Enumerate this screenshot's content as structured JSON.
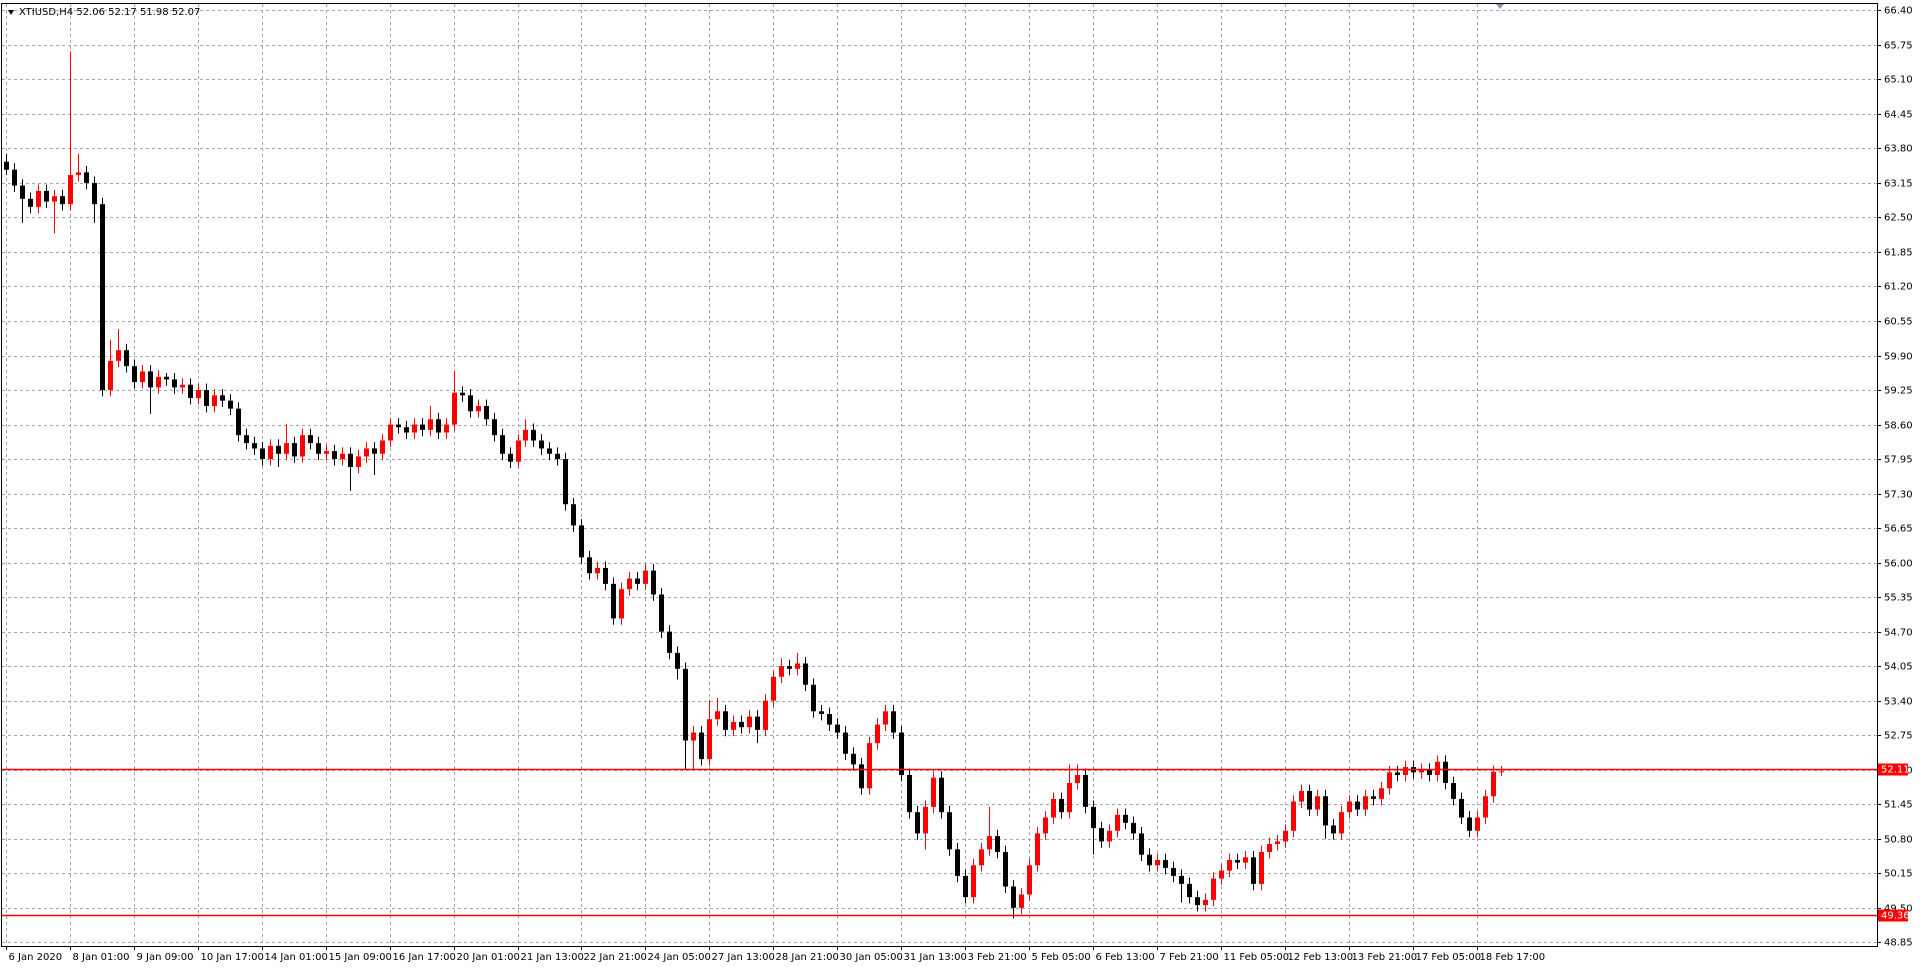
{
  "chart_data": {
    "type": "candlestick",
    "title": "XTIUSD,H4  52.06 52.17 51.98 52.07",
    "up_color": "#ff0000",
    "down_color": "#000000",
    "hline_color": "#ff0000",
    "grid": true,
    "ylim": [
      48.78,
      66.52
    ],
    "yticks": [
      {
        "value": 66.4,
        "label": "66.40"
      },
      65.75,
      {
        "value": 65.1,
        "label": "65.10"
      },
      64.45,
      {
        "value": 63.8,
        "label": "63.80"
      },
      63.15,
      {
        "value": 62.5,
        "label": "62.50"
      },
      61.85,
      {
        "value": 61.2,
        "label": "61.20"
      },
      60.55,
      {
        "value": 59.9,
        "label": "59.90"
      },
      59.25,
      {
        "value": 58.6,
        "label": "58.60"
      },
      57.95,
      {
        "value": 57.3,
        "label": "57.30"
      },
      56.65,
      {
        "value": 56,
        "label": "56.00"
      },
      55.35,
      {
        "value": 54.7,
        "label": "54.70"
      },
      54.05,
      {
        "value": 53.4,
        "label": "53.40"
      },
      52.75,
      {
        "value": 52.1,
        "label": "52.10"
      },
      51.45,
      {
        "value": 50.8,
        "label": "50.80"
      },
      50.15,
      {
        "value": 49.5,
        "label": "49.50"
      },
      48.85
    ],
    "xlim": [
      -0.5,
      234.1
    ],
    "xticks": [
      {
        "value": 0,
        "label": "6 Jan 2020"
      },
      {
        "value": 8,
        "label": "8 Jan 01:00"
      },
      {
        "value": 16,
        "label": "9 Jan 09:00"
      },
      {
        "value": 24,
        "label": "10 Jan 17:00"
      },
      {
        "value": 32,
        "label": "14 Jan 01:00"
      },
      {
        "value": 40,
        "label": "15 Jan 09:00"
      },
      {
        "value": 48,
        "label": "16 Jan 17:00"
      },
      {
        "value": 56,
        "label": "20 Jan 01:00"
      },
      {
        "value": 64,
        "label": "21 Jan 13:00"
      },
      {
        "value": 72,
        "label": "22 Jan 21:00"
      },
      {
        "value": 80,
        "label": "24 Jan 05:00"
      },
      {
        "value": 88,
        "label": "27 Jan 13:00"
      },
      {
        "value": 96,
        "label": "28 Jan 21:00"
      },
      {
        "value": 104,
        "label": "30 Jan 05:00"
      },
      {
        "value": 112,
        "label": "31 Jan 13:00"
      },
      {
        "value": 120,
        "label": "3 Feb 21:00"
      },
      {
        "value": 128,
        "label": "5 Feb 05:00"
      },
      {
        "value": 136,
        "label": "6 Feb 13:00"
      },
      {
        "value": 144,
        "label": "7 Feb 21:00"
      },
      {
        "value": 152,
        "label": "11 Feb 05:00"
      },
      {
        "value": 160,
        "label": "12 Feb 13:00"
      },
      {
        "value": 168,
        "label": "13 Feb 21:00"
      },
      {
        "value": 176,
        "label": "17 Feb 05:00"
      },
      {
        "value": 184,
        "label": "18 Feb 17:00"
      }
    ],
    "hlines": [
      52.11,
      49.36
    ],
    "candles": [
      [
        63.55,
        63.7,
        63.3,
        63.4
      ],
      [
        63.4,
        63.52,
        62.98,
        63.1
      ],
      [
        63.1,
        63.22,
        62.4,
        62.85
      ],
      [
        62.85,
        62.97,
        62.58,
        62.7
      ],
      [
        62.7,
        63.12,
        62.58,
        63.0
      ],
      [
        63.0,
        63.12,
        62.68,
        62.8
      ],
      [
        62.8,
        63.02,
        62.2,
        62.9
      ],
      [
        62.9,
        63.02,
        62.63,
        62.75
      ],
      [
        62.75,
        65.62,
        62.63,
        63.3
      ],
      [
        63.3,
        63.7,
        63.18,
        63.35
      ],
      [
        63.35,
        63.47,
        63.03,
        63.15
      ],
      [
        63.15,
        63.27,
        62.4,
        62.75
      ],
      [
        62.75,
        62.87,
        59.13,
        59.25
      ],
      [
        59.25,
        60.2,
        59.13,
        59.8
      ],
      [
        59.8,
        60.4,
        59.68,
        60.0
      ],
      [
        60.0,
        60.12,
        59.58,
        59.7
      ],
      [
        59.7,
        59.82,
        59.28,
        59.4
      ],
      [
        59.4,
        59.72,
        59.28,
        59.6
      ],
      [
        59.6,
        59.72,
        58.8,
        59.3
      ],
      [
        59.3,
        59.62,
        59.18,
        59.5
      ],
      [
        59.5,
        59.57,
        59.33,
        59.45
      ],
      [
        59.45,
        59.57,
        59.18,
        59.3
      ],
      [
        59.3,
        59.47,
        59.18,
        59.35
      ],
      [
        59.35,
        59.47,
        58.98,
        59.1
      ],
      [
        59.1,
        59.37,
        58.98,
        59.25
      ],
      [
        59.25,
        59.37,
        58.83,
        58.95
      ],
      [
        58.95,
        59.27,
        58.83,
        59.15
      ],
      [
        59.15,
        59.27,
        58.93,
        59.05
      ],
      [
        59.05,
        59.17,
        58.78,
        58.9
      ],
      [
        58.9,
        59.02,
        58.28,
        58.4
      ],
      [
        58.4,
        58.52,
        58.13,
        58.25
      ],
      [
        58.25,
        58.37,
        58.03,
        58.15
      ],
      [
        58.15,
        58.27,
        57.83,
        57.95
      ],
      [
        57.95,
        58.32,
        57.83,
        58.2
      ],
      [
        58.2,
        58.32,
        57.8,
        58.05
      ],
      [
        58.05,
        58.6,
        57.93,
        58.25
      ],
      [
        58.25,
        58.37,
        57.88,
        58.0
      ],
      [
        58.0,
        58.52,
        57.88,
        58.4
      ],
      [
        58.4,
        58.52,
        58.13,
        58.25
      ],
      [
        58.25,
        58.37,
        57.93,
        58.05
      ],
      [
        58.05,
        58.22,
        57.93,
        58.1
      ],
      [
        58.1,
        58.22,
        57.83,
        57.95
      ],
      [
        57.95,
        58.17,
        57.83,
        58.05
      ],
      [
        58.05,
        58.17,
        57.35,
        57.8
      ],
      [
        57.8,
        58.12,
        57.68,
        58.0
      ],
      [
        58.0,
        58.27,
        57.88,
        58.15
      ],
      [
        58.15,
        58.27,
        57.65,
        58.05
      ],
      [
        58.05,
        58.42,
        57.93,
        58.3
      ],
      [
        58.3,
        58.72,
        58.18,
        58.6
      ],
      [
        58.6,
        58.72,
        58.43,
        58.55
      ],
      [
        58.55,
        58.67,
        58.33,
        58.45
      ],
      [
        58.45,
        58.72,
        58.33,
        58.6
      ],
      [
        58.6,
        58.72,
        58.38,
        58.5
      ],
      [
        58.5,
        58.95,
        58.38,
        58.7
      ],
      [
        58.7,
        58.82,
        58.33,
        58.45
      ],
      [
        58.45,
        58.72,
        58.33,
        58.6
      ],
      [
        58.6,
        59.6,
        58.48,
        59.2
      ],
      [
        59.2,
        59.32,
        59.03,
        59.15
      ],
      [
        59.15,
        59.27,
        58.73,
        58.85
      ],
      [
        58.85,
        59.07,
        58.73,
        58.95
      ],
      [
        58.95,
        59.07,
        58.58,
        58.7
      ],
      [
        58.7,
        58.82,
        58.28,
        58.4
      ],
      [
        58.4,
        58.52,
        57.93,
        58.05
      ],
      [
        58.05,
        58.17,
        57.78,
        57.9
      ],
      [
        57.9,
        58.42,
        57.78,
        58.3
      ],
      [
        58.3,
        58.7,
        58.18,
        58.5
      ],
      [
        58.5,
        58.62,
        58.18,
        58.3
      ],
      [
        58.3,
        58.42,
        58.03,
        58.15
      ],
      [
        58.15,
        58.27,
        57.93,
        58.05
      ],
      [
        58.05,
        58.17,
        57.83,
        57.95
      ],
      [
        57.95,
        58.07,
        56.98,
        57.1
      ],
      [
        57.1,
        57.22,
        56.58,
        56.7
      ],
      [
        56.7,
        56.82,
        55.98,
        56.1
      ],
      [
        56.1,
        56.22,
        55.68,
        55.8
      ],
      [
        55.8,
        56.02,
        55.68,
        55.9
      ],
      [
        55.9,
        56.02,
        55.48,
        55.6
      ],
      [
        55.6,
        55.72,
        54.83,
        54.95
      ],
      [
        54.95,
        55.62,
        54.83,
        55.5
      ],
      [
        55.5,
        55.82,
        55.38,
        55.7
      ],
      [
        55.7,
        55.82,
        55.48,
        55.6
      ],
      [
        55.6,
        55.97,
        55.48,
        55.85
      ],
      [
        55.85,
        55.97,
        55.28,
        55.4
      ],
      [
        55.4,
        55.52,
        54.58,
        54.7
      ],
      [
        54.7,
        54.82,
        54.18,
        54.3
      ],
      [
        54.3,
        54.42,
        53.8,
        54.0
      ],
      [
        54.0,
        54.12,
        52.1,
        52.65
      ],
      [
        52.65,
        52.92,
        52.1,
        52.8
      ],
      [
        52.8,
        52.92,
        52.18,
        52.3
      ],
      [
        52.3,
        53.4,
        52.18,
        53.05
      ],
      [
        53.05,
        53.45,
        52.93,
        53.2
      ],
      [
        53.2,
        53.32,
        52.73,
        52.85
      ],
      [
        52.85,
        53.12,
        52.73,
        53.0
      ],
      [
        53.0,
        53.12,
        52.78,
        52.9
      ],
      [
        52.9,
        53.22,
        52.78,
        53.1
      ],
      [
        53.1,
        53.22,
        52.6,
        52.85
      ],
      [
        52.85,
        53.52,
        52.73,
        53.4
      ],
      [
        53.4,
        53.97,
        53.28,
        53.85
      ],
      [
        53.85,
        54.2,
        53.73,
        54.05
      ],
      [
        54.05,
        54.17,
        53.88,
        54.0
      ],
      [
        54.0,
        54.3,
        53.88,
        54.1
      ],
      [
        54.1,
        54.22,
        53.58,
        53.7
      ],
      [
        53.7,
        53.82,
        53.08,
        53.2
      ],
      [
        53.2,
        53.32,
        53.03,
        53.15
      ],
      [
        53.15,
        53.27,
        52.83,
        52.95
      ],
      [
        52.95,
        53.07,
        52.68,
        52.8
      ],
      [
        52.8,
        52.92,
        52.28,
        52.4
      ],
      [
        52.4,
        52.52,
        52.08,
        52.2
      ],
      [
        52.2,
        52.32,
        51.63,
        51.75
      ],
      [
        51.75,
        52.72,
        51.63,
        52.6
      ],
      [
        52.6,
        53.07,
        52.48,
        52.95
      ],
      [
        52.95,
        53.32,
        52.83,
        53.2
      ],
      [
        53.2,
        53.32,
        52.68,
        52.8
      ],
      [
        52.8,
        52.92,
        51.88,
        52.0
      ],
      [
        52.0,
        52.12,
        51.18,
        51.3
      ],
      [
        51.3,
        51.42,
        50.78,
        50.9
      ],
      [
        50.9,
        51.52,
        50.6,
        51.4
      ],
      [
        51.4,
        52.07,
        51.28,
        51.95
      ],
      [
        51.95,
        52.07,
        51.18,
        51.3
      ],
      [
        51.3,
        51.42,
        50.48,
        50.6
      ],
      [
        50.6,
        50.72,
        49.98,
        50.1
      ],
      [
        50.1,
        50.22,
        49.58,
        49.7
      ],
      [
        49.7,
        50.42,
        49.58,
        50.3
      ],
      [
        50.3,
        50.72,
        50.18,
        50.6
      ],
      [
        50.6,
        51.4,
        50.48,
        50.85
      ],
      [
        50.85,
        50.97,
        50.43,
        50.55
      ],
      [
        50.55,
        50.67,
        49.78,
        49.9
      ],
      [
        49.9,
        50.02,
        49.3,
        49.5
      ],
      [
        49.5,
        49.87,
        49.38,
        49.75
      ],
      [
        49.75,
        50.42,
        49.63,
        50.3
      ],
      [
        50.3,
        51.02,
        50.18,
        50.9
      ],
      [
        50.9,
        51.32,
        50.78,
        51.2
      ],
      [
        51.2,
        51.67,
        51.08,
        51.55
      ],
      [
        51.55,
        51.67,
        51.18,
        51.3
      ],
      [
        51.3,
        52.2,
        51.18,
        51.85
      ],
      [
        51.85,
        52.2,
        51.73,
        52.0
      ],
      [
        52.0,
        52.12,
        51.28,
        51.4
      ],
      [
        51.4,
        51.52,
        50.5,
        51.0
      ],
      [
        51.0,
        51.12,
        50.63,
        50.75
      ],
      [
        50.75,
        51.07,
        50.63,
        50.95
      ],
      [
        50.95,
        51.37,
        50.83,
        51.25
      ],
      [
        51.25,
        51.37,
        50.98,
        51.1
      ],
      [
        51.1,
        51.22,
        50.78,
        50.9
      ],
      [
        50.9,
        51.02,
        50.38,
        50.5
      ],
      [
        50.5,
        50.62,
        50.18,
        50.3
      ],
      [
        50.3,
        50.52,
        50.18,
        50.4
      ],
      [
        50.4,
        50.52,
        50.13,
        50.25
      ],
      [
        50.25,
        50.37,
        49.98,
        50.1
      ],
      [
        50.1,
        50.22,
        49.6,
        49.95
      ],
      [
        49.95,
        50.07,
        49.58,
        49.7
      ],
      [
        49.7,
        49.82,
        49.43,
        49.55
      ],
      [
        49.55,
        49.77,
        49.43,
        49.65
      ],
      [
        49.65,
        50.17,
        49.53,
        50.05
      ],
      [
        50.05,
        50.32,
        49.93,
        50.2
      ],
      [
        50.2,
        50.52,
        50.08,
        50.4
      ],
      [
        50.4,
        50.52,
        50.23,
        50.35
      ],
      [
        50.35,
        50.57,
        50.23,
        50.45
      ],
      [
        50.45,
        50.57,
        49.83,
        49.95
      ],
      [
        49.95,
        50.67,
        49.83,
        50.55
      ],
      [
        50.55,
        50.82,
        50.43,
        50.7
      ],
      [
        50.7,
        50.87,
        50.58,
        50.75
      ],
      [
        50.75,
        51.07,
        50.63,
        50.95
      ],
      [
        50.95,
        51.62,
        50.83,
        51.5
      ],
      [
        51.5,
        51.82,
        51.38,
        51.7
      ],
      [
        51.7,
        51.82,
        51.23,
        51.35
      ],
      [
        51.35,
        51.72,
        51.23,
        51.6
      ],
      [
        51.6,
        51.72,
        50.8,
        51.05
      ],
      [
        51.05,
        51.17,
        50.78,
        50.9
      ],
      [
        50.9,
        51.42,
        50.78,
        51.3
      ],
      [
        51.3,
        51.62,
        51.18,
        51.5
      ],
      [
        51.5,
        51.62,
        51.23,
        51.35
      ],
      [
        51.35,
        51.72,
        51.23,
        51.6
      ],
      [
        51.6,
        51.72,
        51.43,
        51.55
      ],
      [
        51.55,
        51.87,
        51.43,
        51.75
      ],
      [
        51.75,
        52.17,
        51.63,
        52.05
      ],
      [
        52.05,
        52.17,
        51.88,
        52.0
      ],
      [
        52.0,
        52.27,
        51.88,
        52.15
      ],
      [
        52.15,
        52.27,
        51.93,
        52.05
      ],
      [
        52.05,
        52.22,
        51.93,
        52.1
      ],
      [
        52.1,
        52.22,
        51.88,
        52.0
      ],
      [
        52.0,
        52.37,
        51.88,
        52.25
      ],
      [
        52.25,
        52.37,
        51.73,
        51.85
      ],
      [
        51.85,
        51.97,
        51.43,
        51.55
      ],
      [
        51.55,
        51.67,
        51.08,
        51.2
      ],
      [
        51.2,
        51.32,
        50.83,
        50.95
      ],
      [
        50.95,
        51.32,
        50.83,
        51.2
      ],
      [
        51.2,
        51.72,
        51.08,
        51.6
      ],
      [
        51.6,
        52.18,
        51.48,
        52.06
      ],
      [
        52.06,
        52.17,
        51.98,
        52.07
      ]
    ]
  }
}
